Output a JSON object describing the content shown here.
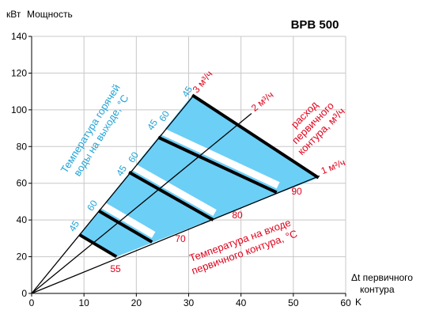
{
  "chart_data": {
    "type": "line",
    "title": "BPB 500",
    "y_unit": "кВт",
    "y_label": "Мощность",
    "x_unit": "K",
    "x_label": [
      "Δt первичного",
      "контура"
    ],
    "xlim": [
      0,
      60
    ],
    "xticks": [
      0,
      10,
      20,
      30,
      40,
      50,
      60
    ],
    "ylim": [
      0,
      140
    ],
    "yticks": [
      0,
      20,
      40,
      60,
      80,
      100,
      120,
      140
    ],
    "grid": true,
    "series": [
      {
        "name": "1 м³/ч",
        "color": "#e2001a",
        "x": [
          0,
          55
        ],
        "values": [
          0,
          64
        ]
      },
      {
        "name": "2 м³/ч",
        "color": "#e2001a",
        "x": [
          0,
          42
        ],
        "values": [
          0,
          98
        ]
      },
      {
        "name": "3 м³/ч",
        "color": "#e2001a",
        "x": [
          0,
          31
        ],
        "values": [
          0,
          108
        ]
      }
    ],
    "isolines": [
      {
        "x": [
          9.1,
          16.2
        ],
        "values": [
          32,
          20
        ]
      },
      {
        "x": [
          12.8,
          23
        ],
        "values": [
          45,
          28
        ]
      },
      {
        "x": [
          18.6,
          34.7
        ],
        "values": [
          66,
          40
        ]
      },
      {
        "x": [
          24.2,
          46.8
        ],
        "values": [
          85,
          55
        ]
      },
      {
        "x": [
          30.7,
          54.8
        ],
        "values": [
          108,
          63
        ]
      }
    ],
    "fill_color": "#6ccff6",
    "outlet_temps": [
      45,
      60,
      45,
      60,
      45,
      60,
      45
    ],
    "inlet_temps": [
      55,
      70,
      80,
      90
    ],
    "outlet_caption": [
      "Температура горячей",
      "воды на выходе, °C"
    ],
    "flow_caption": [
      "расход",
      "первичного",
      "контура, м³/ч"
    ],
    "inlet_caption": [
      "Температура на входе",
      "первичного контура, °C"
    ]
  }
}
